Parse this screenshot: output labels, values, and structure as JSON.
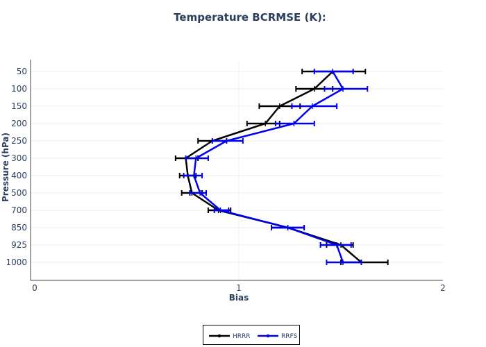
{
  "chart_data": {
    "type": "line",
    "title": "Temperature BCRMSE (K):",
    "xlabel": "Bias",
    "ylabel": "Pressure (hPa)",
    "xlim": [
      0,
      2
    ],
    "x_ticks": [
      "0",
      "1",
      "2"
    ],
    "categories": [
      "50",
      "100",
      "150",
      "200",
      "250",
      "300",
      "400",
      "500",
      "700",
      "850",
      "925",
      "1000"
    ],
    "grid": true,
    "legend_position": "bottom-center",
    "series": [
      {
        "name": "HRRR",
        "color": "#000000",
        "values": [
          1.46,
          1.37,
          1.2,
          1.13,
          0.87,
          0.74,
          0.75,
          0.77,
          0.9,
          1.24,
          1.5,
          1.6
        ],
        "err_low": [
          1.31,
          1.28,
          1.1,
          1.04,
          0.8,
          0.69,
          0.71,
          0.72,
          0.85,
          1.16,
          1.43,
          1.5
        ],
        "err_high": [
          1.62,
          1.46,
          1.3,
          1.2,
          0.94,
          0.8,
          0.79,
          0.82,
          0.96,
          1.32,
          1.56,
          1.73
        ]
      },
      {
        "name": "RRFS",
        "color": "#0000ee",
        "values": [
          1.46,
          1.51,
          1.36,
          1.27,
          0.94,
          0.79,
          0.78,
          0.81,
          0.91,
          1.24,
          1.48,
          1.51
        ],
        "err_low": [
          1.37,
          1.42,
          1.26,
          1.18,
          0.87,
          0.74,
          0.73,
          0.76,
          0.88,
          1.16,
          1.4,
          1.43
        ],
        "err_high": [
          1.56,
          1.63,
          1.48,
          1.37,
          1.02,
          0.85,
          0.82,
          0.84,
          0.95,
          1.32,
          1.55,
          1.6
        ]
      }
    ]
  }
}
